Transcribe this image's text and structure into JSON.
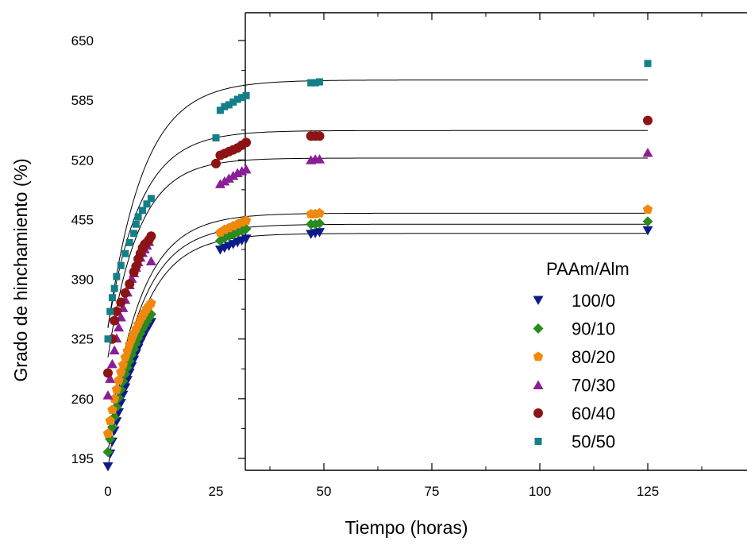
{
  "chart_data": {
    "type": "scatter",
    "title": "",
    "xlabel": "Tiempo (horas)",
    "ylabel": "Grado de hinchamiento (%)",
    "xlim": [
      0,
      148
    ],
    "ylim": [
      155,
      650
    ],
    "x_ticks": [
      0,
      25,
      50,
      75,
      100,
      125
    ],
    "y_ticks": [
      195,
      260,
      325,
      390,
      455,
      520,
      585,
      650
    ],
    "grid": false,
    "legend": {
      "title": "PAAm/Alm",
      "position": "right-center"
    },
    "series": [
      {
        "name": "100/0",
        "marker": "triangle-down",
        "color": "#0d1a8c",
        "points": [
          [
            0,
            186
          ],
          [
            0.5,
            200
          ],
          [
            1,
            213
          ],
          [
            1.5,
            225
          ],
          [
            2,
            235
          ],
          [
            2.5,
            245
          ],
          [
            3,
            255
          ],
          [
            3.5,
            264
          ],
          [
            4,
            272
          ],
          [
            4.5,
            280
          ],
          [
            5,
            288
          ],
          [
            5.5,
            295
          ],
          [
            6,
            302
          ],
          [
            6.5,
            309
          ],
          [
            7,
            315
          ],
          [
            7.5,
            321
          ],
          [
            8,
            326
          ],
          [
            8.5,
            331
          ],
          [
            9,
            335
          ],
          [
            9.5,
            339
          ],
          [
            10,
            343
          ],
          [
            26,
            422
          ],
          [
            27,
            424
          ],
          [
            28,
            426
          ],
          [
            29,
            428
          ],
          [
            30,
            430
          ],
          [
            31,
            432
          ],
          [
            32,
            434
          ],
          [
            47,
            439
          ],
          [
            48,
            440
          ],
          [
            49,
            441
          ],
          [
            125,
            443
          ]
        ],
        "fit": {
          "a": 440,
          "b": 256,
          "k": 0.132
        }
      },
      {
        "name": "90/10",
        "marker": "diamond",
        "color": "#2a8a1e",
        "points": [
          [
            0,
            202
          ],
          [
            0.5,
            216
          ],
          [
            1,
            229
          ],
          [
            1.5,
            240
          ],
          [
            2,
            251
          ],
          [
            2.5,
            261
          ],
          [
            3,
            270
          ],
          [
            3.5,
            279
          ],
          [
            4,
            287
          ],
          [
            4.5,
            294
          ],
          [
            5,
            301
          ],
          [
            5.5,
            308
          ],
          [
            6,
            314
          ],
          [
            6.5,
            320
          ],
          [
            7,
            326
          ],
          [
            7.5,
            331
          ],
          [
            8,
            336
          ],
          [
            8.5,
            340
          ],
          [
            9,
            344
          ],
          [
            9.5,
            348
          ],
          [
            10,
            352
          ],
          [
            26,
            432
          ],
          [
            27,
            435
          ],
          [
            28,
            437
          ],
          [
            29,
            439
          ],
          [
            30,
            441
          ],
          [
            31,
            443
          ],
          [
            32,
            445
          ],
          [
            47,
            450
          ],
          [
            48,
            450
          ],
          [
            49,
            451
          ],
          [
            125,
            453
          ]
        ],
        "fit": {
          "a": 450,
          "b": 248,
          "k": 0.132
        }
      },
      {
        "name": "80/20",
        "marker": "pentagon",
        "color": "#f0880e",
        "points": [
          [
            0,
            222
          ],
          [
            0.5,
            236
          ],
          [
            1,
            248
          ],
          [
            1.5,
            260
          ],
          [
            2,
            270
          ],
          [
            2.5,
            280
          ],
          [
            3,
            289
          ],
          [
            3.5,
            297
          ],
          [
            4,
            305
          ],
          [
            4.5,
            312
          ],
          [
            5,
            319
          ],
          [
            5.5,
            325
          ],
          [
            6,
            331
          ],
          [
            6.5,
            336
          ],
          [
            7,
            341
          ],
          [
            7.5,
            346
          ],
          [
            8,
            350
          ],
          [
            8.5,
            354
          ],
          [
            9,
            358
          ],
          [
            9.5,
            361
          ],
          [
            10,
            364
          ],
          [
            26,
            441
          ],
          [
            27,
            444
          ],
          [
            28,
            446
          ],
          [
            29,
            448
          ],
          [
            30,
            450
          ],
          [
            31,
            452
          ],
          [
            32,
            454
          ],
          [
            47,
            461
          ],
          [
            48,
            461
          ],
          [
            49,
            462
          ],
          [
            125,
            466
          ]
        ],
        "fit": {
          "a": 462,
          "b": 250,
          "k": 0.132
        }
      },
      {
        "name": "70/30",
        "marker": "triangle-up",
        "color": "#8a1e96",
        "points": [
          [
            0,
            264
          ],
          [
            0.5,
            282
          ],
          [
            1,
            298
          ],
          [
            1.5,
            313
          ],
          [
            2,
            326
          ],
          [
            2.5,
            338
          ],
          [
            3,
            349
          ],
          [
            3.5,
            359
          ],
          [
            4,
            368
          ],
          [
            4.5,
            376
          ],
          [
            5,
            384
          ],
          [
            5.5,
            391
          ],
          [
            6,
            397
          ],
          [
            6.5,
            403
          ],
          [
            7,
            409
          ],
          [
            7.5,
            414
          ],
          [
            8,
            419
          ],
          [
            8.5,
            423
          ],
          [
            9,
            427
          ],
          [
            9.5,
            431
          ],
          [
            10,
            410
          ],
          [
            26,
            494
          ],
          [
            27,
            497
          ],
          [
            28,
            500
          ],
          [
            29,
            503
          ],
          [
            30,
            506
          ],
          [
            31,
            508
          ],
          [
            32,
            510
          ],
          [
            47,
            520
          ],
          [
            48,
            521
          ],
          [
            49,
            521
          ],
          [
            125,
            528
          ]
        ],
        "fit": {
          "a": 522,
          "b": 217,
          "k": 0.142
        }
      },
      {
        "name": "60/40",
        "marker": "circle",
        "color": "#8c1414",
        "points": [
          [
            0,
            288
          ],
          [
            1,
            325
          ],
          [
            1.5,
            345
          ],
          [
            2,
            355
          ],
          [
            3,
            365
          ],
          [
            4,
            375
          ],
          [
            5,
            385
          ],
          [
            6,
            398
          ],
          [
            6.5,
            404
          ],
          [
            7,
            412
          ],
          [
            7.5,
            418
          ],
          [
            8,
            424
          ],
          [
            8.5,
            428
          ],
          [
            9,
            430
          ],
          [
            9.5,
            433
          ],
          [
            10,
            437
          ],
          [
            25,
            516
          ],
          [
            26,
            525
          ],
          [
            27,
            527
          ],
          [
            28,
            529
          ],
          [
            29,
            531
          ],
          [
            30,
            533
          ],
          [
            31,
            536
          ],
          [
            32,
            539
          ],
          [
            47,
            546
          ],
          [
            48,
            546
          ],
          [
            49,
            546
          ],
          [
            125,
            563
          ]
        ],
        "fit": {
          "a": 552,
          "b": 214,
          "k": 0.132
        }
      },
      {
        "name": "50/50",
        "marker": "square",
        "color": "#137f88",
        "points": [
          [
            0,
            325
          ],
          [
            0.5,
            355
          ],
          [
            1,
            370
          ],
          [
            1.5,
            380
          ],
          [
            2,
            393
          ],
          [
            3,
            405
          ],
          [
            4,
            418
          ],
          [
            5,
            430
          ],
          [
            6,
            440
          ],
          [
            6.5,
            450
          ],
          [
            7,
            458
          ],
          [
            8,
            465
          ],
          [
            9,
            472
          ],
          [
            10,
            478
          ],
          [
            25,
            544
          ],
          [
            26,
            574
          ],
          [
            27,
            578
          ],
          [
            28,
            580
          ],
          [
            29,
            583
          ],
          [
            30,
            586
          ],
          [
            31,
            588
          ],
          [
            32,
            590
          ],
          [
            47,
            604
          ],
          [
            48,
            604
          ],
          [
            49,
            605
          ],
          [
            125,
            625
          ]
        ],
        "fit": {
          "a": 607,
          "b": 270,
          "k": 0.122
        }
      }
    ]
  }
}
